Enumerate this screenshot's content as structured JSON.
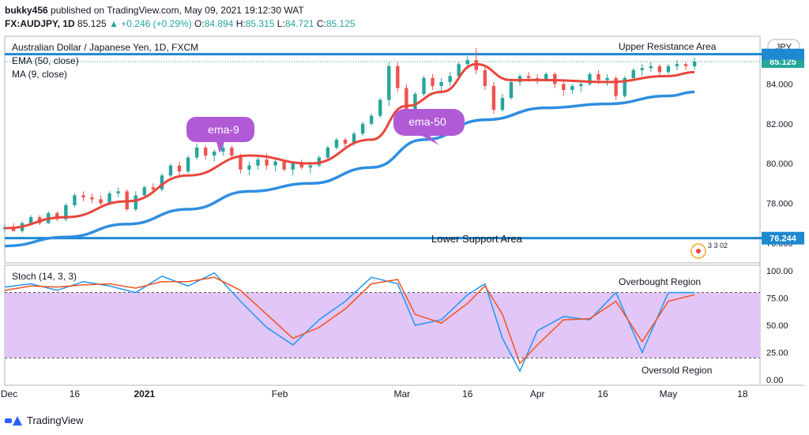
{
  "header": {
    "publisher": "bukky456",
    "published_text": "published on TradingView.com, May 09, 2021 19:12:30 WAT",
    "symbol": "FX:AUDJPY, 1D",
    "last": "85.125",
    "change": "▲ +0.246 (+0.29%)",
    "o_label": "O:",
    "o_val": "84.894",
    "h_label": "H:",
    "h_val": "85.315",
    "l_label": "L:",
    "l_val": "84.721",
    "c_label": "C:",
    "c_val": "85.125"
  },
  "legend": {
    "title": "Australian Dollar / Japanese Yen, 1D, FXCM",
    "ema": "EMA (50, close)",
    "ma": "MA (9, close)",
    "stoch": "Stoch (14, 3, 3)"
  },
  "annotations": {
    "upper_resistance": "Upper Resistance Area",
    "lower_support": "Lower Support Area",
    "ema9_bubble": "ema-9",
    "ema50_bubble": "ema-50",
    "overbought": "Overbought Region",
    "oversold": "Oversold Region",
    "events": "3 3 02"
  },
  "price_axis": {
    "currency": "JPY",
    "current_price": "85.125",
    "support_price": "76.244",
    "resistance_price": "85.5",
    "ticks": [
      "84.000",
      "82.000",
      "80.000",
      "78.000",
      "76.000"
    ]
  },
  "stoch_axis": {
    "ticks": [
      "100.00",
      "75.00",
      "50.00",
      "25.00",
      "0.00"
    ]
  },
  "time_axis": {
    "ticks": [
      "Dec",
      "16",
      "2021",
      "Feb",
      "Mar",
      "16",
      "Apr",
      "16",
      "May",
      "18"
    ]
  },
  "footer": {
    "brand": "TradingView"
  },
  "colors": {
    "up": "#26a69a",
    "down": "#ef5350",
    "ema50": "#2f8ee0",
    "ma9": "#e8463c",
    "band": "#e1c6f7",
    "bubble": "#b05ad6",
    "level": "#1e88d0",
    "stoch_k": "#2196f3",
    "stoch_d": "#f4511e"
  },
  "chart_data": [
    {
      "type": "line",
      "title": "Australian Dollar / Japanese Yen, 1D, FXCM",
      "y_range": [
        75.0,
        86.4
      ],
      "x_range": [
        "2020-11-30",
        "2021-05-22"
      ],
      "levels": {
        "upper_resistance": 85.5,
        "lower_support": 76.244
      },
      "candles": [
        [
          "2020-11-30",
          76.7,
          76.95,
          76.5,
          76.8
        ],
        [
          "2020-12-02",
          76.8,
          77.0,
          76.6,
          76.6
        ],
        [
          "2020-12-04",
          76.6,
          77.1,
          76.5,
          77.0
        ],
        [
          "2020-12-06",
          77.0,
          77.4,
          76.9,
          77.3
        ],
        [
          "2020-12-08",
          77.3,
          77.4,
          76.9,
          77.0
        ],
        [
          "2020-12-10",
          77.0,
          77.6,
          76.95,
          77.5
        ],
        [
          "2020-12-12",
          77.5,
          77.6,
          77.1,
          77.2
        ],
        [
          "2020-12-14",
          77.2,
          78.0,
          77.1,
          77.9
        ],
        [
          "2020-12-16",
          77.9,
          78.5,
          77.8,
          78.4
        ],
        [
          "2020-12-18",
          78.4,
          78.6,
          78.1,
          78.3
        ],
        [
          "2020-12-20",
          78.3,
          78.5,
          78.0,
          78.2
        ],
        [
          "2020-12-22",
          78.2,
          78.4,
          77.9,
          78.0
        ],
        [
          "2020-12-24",
          78.0,
          78.6,
          77.9,
          78.5
        ],
        [
          "2020-12-26",
          78.5,
          78.8,
          78.3,
          78.6
        ],
        [
          "2020-12-28",
          78.6,
          78.7,
          77.6,
          77.7
        ],
        [
          "2020-12-30",
          77.7,
          78.6,
          77.6,
          78.4
        ],
        [
          "2021-01-01",
          78.4,
          78.9,
          78.3,
          78.8
        ],
        [
          "2021-01-03",
          78.8,
          79.0,
          78.5,
          78.7
        ],
        [
          "2021-01-05",
          78.7,
          79.5,
          78.6,
          79.4
        ],
        [
          "2021-01-07",
          79.4,
          80.0,
          79.3,
          79.9
        ],
        [
          "2021-01-09",
          79.9,
          80.1,
          79.4,
          79.6
        ],
        [
          "2021-01-11",
          79.6,
          80.4,
          79.5,
          80.3
        ],
        [
          "2021-01-13",
          80.3,
          81.0,
          80.2,
          80.8
        ],
        [
          "2021-01-15",
          80.8,
          80.9,
          80.2,
          80.4
        ],
        [
          "2021-01-17",
          80.4,
          80.7,
          80.1,
          80.6
        ],
        [
          "2021-01-19",
          80.6,
          81.0,
          80.4,
          80.8
        ],
        [
          "2021-01-21",
          80.8,
          80.9,
          80.2,
          80.4
        ],
        [
          "2021-01-23",
          80.4,
          80.5,
          79.5,
          79.7
        ],
        [
          "2021-01-25",
          79.7,
          80.1,
          79.4,
          79.9
        ],
        [
          "2021-01-27",
          79.9,
          80.4,
          79.7,
          80.2
        ],
        [
          "2021-01-29",
          80.2,
          80.5,
          79.7,
          79.9
        ],
        [
          "2021-01-31",
          79.9,
          80.3,
          79.6,
          80.1
        ],
        [
          "2021-02-02",
          80.1,
          80.2,
          79.6,
          79.7
        ],
        [
          "2021-02-04",
          79.7,
          80.1,
          79.4,
          80.0
        ],
        [
          "2021-02-06",
          80.0,
          80.2,
          79.7,
          79.8
        ],
        [
          "2021-02-08",
          79.8,
          80.1,
          79.5,
          79.9
        ],
        [
          "2021-02-10",
          79.9,
          80.4,
          79.8,
          80.3
        ],
        [
          "2021-02-12",
          80.3,
          80.9,
          80.2,
          80.8
        ],
        [
          "2021-02-14",
          80.8,
          81.3,
          80.7,
          81.2
        ],
        [
          "2021-02-16",
          81.2,
          81.3,
          80.8,
          81.0
        ],
        [
          "2021-02-18",
          81.0,
          81.6,
          80.9,
          81.5
        ],
        [
          "2021-02-20",
          81.5,
          82.1,
          81.4,
          82.0
        ],
        [
          "2021-02-22",
          82.0,
          82.5,
          81.9,
          82.4
        ],
        [
          "2021-02-24",
          82.4,
          83.3,
          82.3,
          83.2
        ],
        [
          "2021-02-26",
          83.2,
          85.1,
          82.9,
          84.9
        ],
        [
          "2021-02-28",
          84.9,
          85.1,
          83.6,
          83.8
        ],
        [
          "2021-03-02",
          83.8,
          84.0,
          81.9,
          82.2
        ],
        [
          "2021-03-04",
          82.2,
          83.6,
          82.1,
          83.5
        ],
        [
          "2021-03-06",
          83.5,
          84.4,
          83.4,
          84.3
        ],
        [
          "2021-03-08",
          84.3,
          84.5,
          83.7,
          83.9
        ],
        [
          "2021-03-10",
          83.9,
          84.3,
          83.6,
          84.1
        ],
        [
          "2021-03-12",
          84.1,
          84.6,
          83.9,
          84.4
        ],
        [
          "2021-03-14",
          84.4,
          85.1,
          84.3,
          85.0
        ],
        [
          "2021-03-16",
          85.0,
          85.4,
          84.8,
          85.2
        ],
        [
          "2021-03-18",
          85.2,
          85.8,
          84.5,
          84.7
        ],
        [
          "2021-03-20",
          84.7,
          84.9,
          83.7,
          83.9
        ],
        [
          "2021-03-22",
          83.9,
          84.1,
          82.5,
          82.7
        ],
        [
          "2021-03-24",
          82.7,
          83.5,
          82.6,
          83.3
        ],
        [
          "2021-03-26",
          83.3,
          84.2,
          83.2,
          84.1
        ],
        [
          "2021-03-28",
          84.1,
          84.5,
          83.9,
          84.4
        ],
        [
          "2021-03-30",
          84.4,
          84.6,
          84.1,
          84.3
        ],
        [
          "2021-04-01",
          84.3,
          84.5,
          84.0,
          84.2
        ],
        [
          "2021-04-03",
          84.2,
          84.6,
          84.1,
          84.5
        ],
        [
          "2021-04-05",
          84.5,
          84.6,
          83.8,
          84.0
        ],
        [
          "2021-04-07",
          84.0,
          84.2,
          83.4,
          83.7
        ],
        [
          "2021-04-09",
          83.7,
          84.0,
          83.5,
          83.9
        ],
        [
          "2021-04-11",
          83.9,
          84.2,
          83.6,
          84.0
        ],
        [
          "2021-04-13",
          84.0,
          84.6,
          83.9,
          84.5
        ],
        [
          "2021-04-15",
          84.5,
          84.7,
          84.0,
          84.2
        ],
        [
          "2021-04-17",
          84.2,
          84.5,
          83.9,
          84.3
        ],
        [
          "2021-04-19",
          84.3,
          84.4,
          83.2,
          83.4
        ],
        [
          "2021-04-21",
          83.4,
          84.4,
          83.3,
          84.3
        ],
        [
          "2021-04-23",
          84.3,
          84.8,
          84.2,
          84.7
        ],
        [
          "2021-04-25",
          84.7,
          85.0,
          84.4,
          84.8
        ],
        [
          "2021-04-27",
          84.8,
          85.1,
          84.6,
          84.9
        ],
        [
          "2021-04-29",
          84.9,
          85.0,
          84.4,
          84.6
        ],
        [
          "2021-05-01",
          84.6,
          85.0,
          84.5,
          84.9
        ],
        [
          "2021-05-03",
          84.9,
          85.2,
          84.7,
          85.0
        ],
        [
          "2021-05-05",
          85.0,
          85.1,
          84.7,
          84.9
        ],
        [
          "2021-05-07",
          84.89,
          85.32,
          84.72,
          85.13
        ]
      ],
      "series": [
        {
          "name": "EMA (50, close)",
          "points": [
            [
              "2020-11-30",
              75.85
            ],
            [
              "2020-12-14",
              76.3
            ],
            [
              "2020-12-28",
              76.95
            ],
            [
              "2021-01-11",
              77.7
            ],
            [
              "2021-01-25",
              78.6
            ],
            [
              "2021-02-08",
              79.0
            ],
            [
              "2021-02-22",
              79.8
            ],
            [
              "2021-03-06",
              81.2
            ],
            [
              "2021-03-20",
              82.2
            ],
            [
              "2021-04-03",
              82.8
            ],
            [
              "2021-04-17",
              83.0
            ],
            [
              "2021-05-01",
              83.4
            ],
            [
              "2021-05-07",
              83.6
            ]
          ]
        },
        {
          "name": "MA (9, close)",
          "points": [
            [
              "2020-11-30",
              76.75
            ],
            [
              "2020-12-14",
              77.3
            ],
            [
              "2020-12-28",
              78.1
            ],
            [
              "2021-01-11",
              79.4
            ],
            [
              "2021-01-25",
              80.4
            ],
            [
              "2021-02-08",
              80.0
            ],
            [
              "2021-02-22",
              81.2
            ],
            [
              "2021-03-02",
              82.9
            ],
            [
              "2021-03-10",
              83.6
            ],
            [
              "2021-03-18",
              85.0
            ],
            [
              "2021-03-26",
              84.2
            ],
            [
              "2021-04-03",
              84.2
            ],
            [
              "2021-04-17",
              84.1
            ],
            [
              "2021-05-01",
              84.4
            ],
            [
              "2021-05-07",
              84.6
            ]
          ]
        }
      ]
    },
    {
      "type": "line",
      "title": "Stoch (14, 3, 3)",
      "y_range": [
        -5,
        105
      ],
      "bands": {
        "overbought": 80,
        "oversold": 20
      },
      "series": [
        {
          "name": "%K",
          "points": [
            [
              "2020-11-30",
              85
            ],
            [
              "2020-12-06",
              88
            ],
            [
              "2020-12-12",
              82
            ],
            [
              "2020-12-18",
              90
            ],
            [
              "2020-12-24",
              86
            ],
            [
              "2020-12-30",
              80
            ],
            [
              "2021-01-05",
              95
            ],
            [
              "2021-01-11",
              86
            ],
            [
              "2021-01-17",
              98
            ],
            [
              "2021-01-23",
              72
            ],
            [
              "2021-01-29",
              48
            ],
            [
              "2021-02-04",
              32
            ],
            [
              "2021-02-10",
              55
            ],
            [
              "2021-02-16",
              72
            ],
            [
              "2021-02-22",
              94
            ],
            [
              "2021-02-28",
              88
            ],
            [
              "2021-03-04",
              50
            ],
            [
              "2021-03-10",
              55
            ],
            [
              "2021-03-16",
              78
            ],
            [
              "2021-03-20",
              88
            ],
            [
              "2021-03-24",
              38
            ],
            [
              "2021-03-28",
              8
            ],
            [
              "2021-04-01",
              45
            ],
            [
              "2021-04-07",
              58
            ],
            [
              "2021-04-13",
              55
            ],
            [
              "2021-04-19",
              80
            ],
            [
              "2021-04-25",
              25
            ],
            [
              "2021-05-01",
              80
            ],
            [
              "2021-05-07",
              80
            ]
          ]
        },
        {
          "name": "%D",
          "points": [
            [
              "2020-11-30",
              82
            ],
            [
              "2020-12-06",
              86
            ],
            [
              "2020-12-12",
              85
            ],
            [
              "2020-12-18",
              87
            ],
            [
              "2020-12-24",
              88
            ],
            [
              "2020-12-30",
              84
            ],
            [
              "2021-01-05",
              90
            ],
            [
              "2021-01-11",
              90
            ],
            [
              "2021-01-17",
              94
            ],
            [
              "2021-01-23",
              82
            ],
            [
              "2021-01-29",
              60
            ],
            [
              "2021-02-04",
              38
            ],
            [
              "2021-02-10",
              48
            ],
            [
              "2021-02-16",
              65
            ],
            [
              "2021-02-22",
              88
            ],
            [
              "2021-02-28",
              92
            ],
            [
              "2021-03-04",
              60
            ],
            [
              "2021-03-10",
              52
            ],
            [
              "2021-03-16",
              70
            ],
            [
              "2021-03-20",
              86
            ],
            [
              "2021-03-24",
              60
            ],
            [
              "2021-03-28",
              15
            ],
            [
              "2021-04-01",
              32
            ],
            [
              "2021-04-07",
              55
            ],
            [
              "2021-04-13",
              56
            ],
            [
              "2021-04-19",
              72
            ],
            [
              "2021-04-25",
              35
            ],
            [
              "2021-05-01",
              72
            ],
            [
              "2021-05-07",
              78
            ]
          ]
        }
      ]
    }
  ]
}
